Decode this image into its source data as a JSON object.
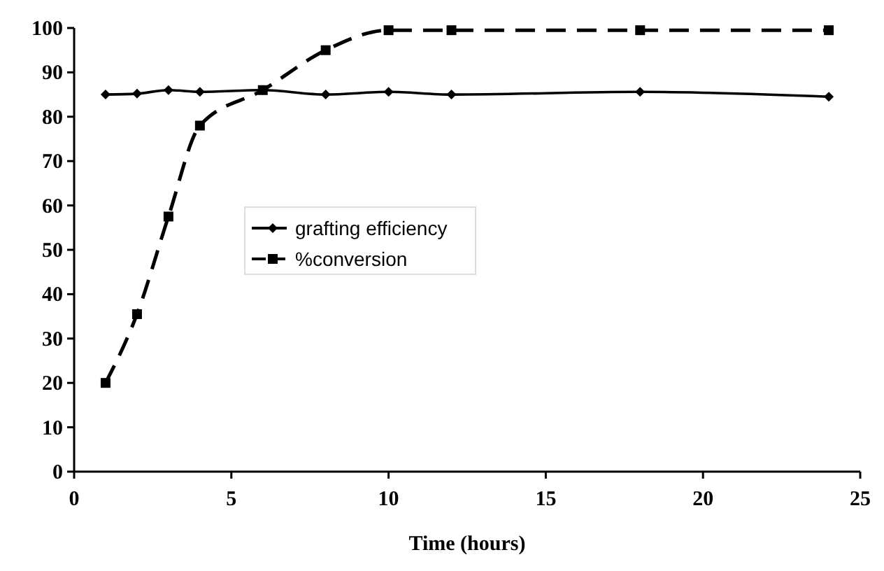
{
  "chart_data": {
    "type": "line",
    "xlabel": "Time (hours)",
    "x": [
      1,
      2,
      3,
      4,
      6,
      8,
      10,
      12,
      18,
      24
    ],
    "series": [
      {
        "name": "grafting efficiency",
        "color": "#000000",
        "marker": "diamond",
        "line_style": "solid",
        "values": [
          85,
          85.2,
          86,
          85.6,
          86,
          85,
          85.6,
          85,
          85.6,
          84.5
        ]
      },
      {
        "name": "%conversion",
        "color": "#000000",
        "marker": "square",
        "line_style": "dashed",
        "values": [
          20,
          35.5,
          57.5,
          78,
          86,
          95,
          99.5,
          99.5,
          99.5,
          99.5
        ]
      }
    ],
    "xlim": [
      0,
      25
    ],
    "xticks": [
      0,
      5,
      10,
      15,
      20,
      25
    ],
    "ylim": [
      0,
      100
    ],
    "yticks": [
      0,
      10,
      20,
      30,
      40,
      50,
      60,
      70,
      80,
      90,
      100
    ],
    "grid": false,
    "legend": "left"
  }
}
